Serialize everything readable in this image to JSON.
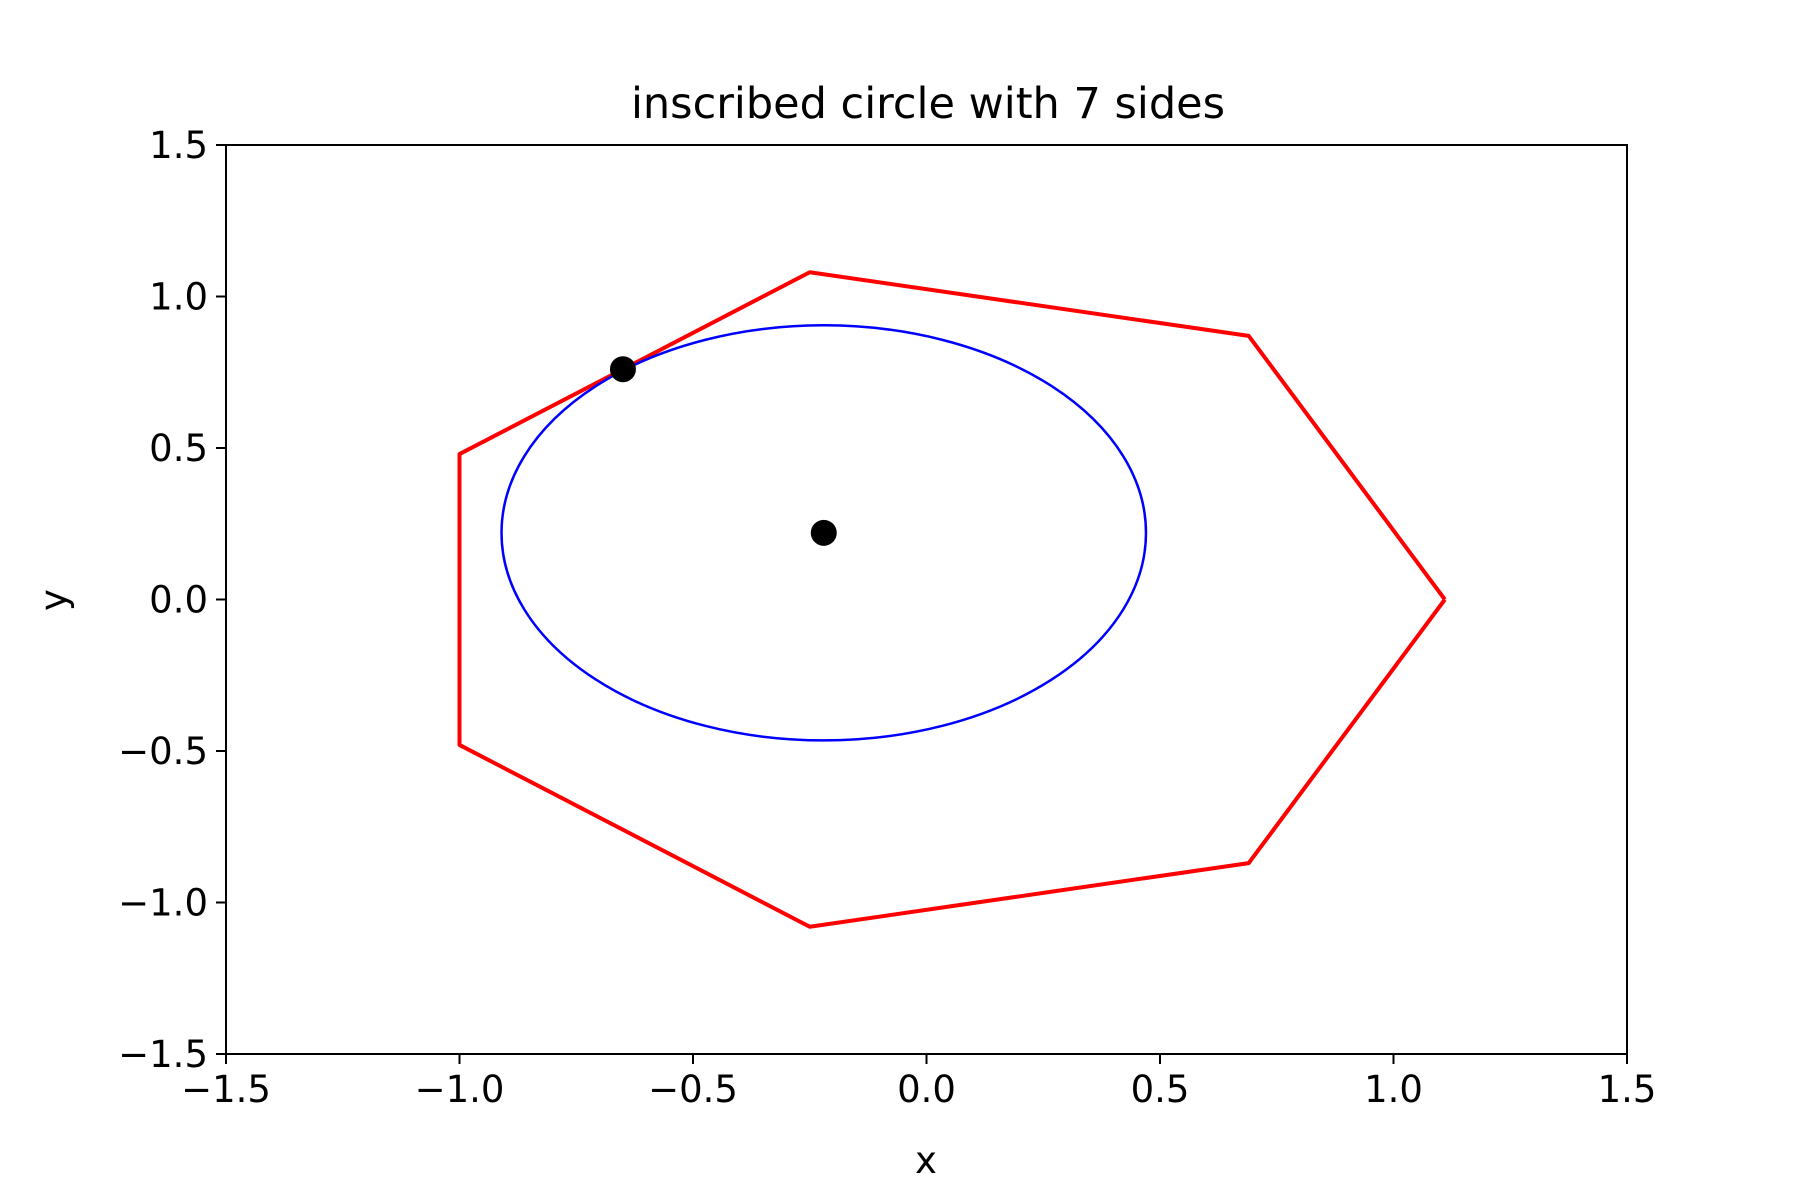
{
  "chart_data": {
    "type": "line",
    "title": "inscribed circle with 7 sides",
    "xlabel": "x",
    "ylabel": "y",
    "xlim": [
      -1.5,
      1.5
    ],
    "ylim": [
      -1.5,
      1.5
    ],
    "xticks": [
      -1.5,
      -1.0,
      -0.5,
      0.0,
      0.5,
      1.0,
      1.5
    ],
    "yticks": [
      -1.5,
      -1.0,
      -0.5,
      0.0,
      0.5,
      1.0,
      1.5
    ],
    "xtick_labels": [
      "−1.5",
      "−1.0",
      "−0.5",
      "0.0",
      "0.5",
      "1.0",
      "1.5"
    ],
    "ytick_labels": [
      "−1.5",
      "−1.0",
      "−0.5",
      "0.0",
      "0.5",
      "1.0",
      "1.5"
    ],
    "grid": false,
    "series": [
      {
        "kind": "polygon",
        "color": "#ff0000",
        "points": [
          [
            1.11,
            0.0
          ],
          [
            0.69,
            0.87
          ],
          [
            -0.25,
            1.08
          ],
          [
            -1.0,
            0.48
          ],
          [
            -1.0,
            -0.48
          ],
          [
            -0.25,
            -1.08
          ],
          [
            0.69,
            -0.87
          ],
          [
            1.11,
            0.0
          ]
        ]
      },
      {
        "kind": "ellipse",
        "color": "#0000ff",
        "center": [
          -0.22,
          0.22
        ],
        "rx": 0.69,
        "ry": 0.685
      },
      {
        "kind": "points",
        "color": "#000000",
        "points": [
          [
            -0.65,
            0.76
          ],
          [
            -0.22,
            0.22
          ]
        ]
      }
    ]
  }
}
